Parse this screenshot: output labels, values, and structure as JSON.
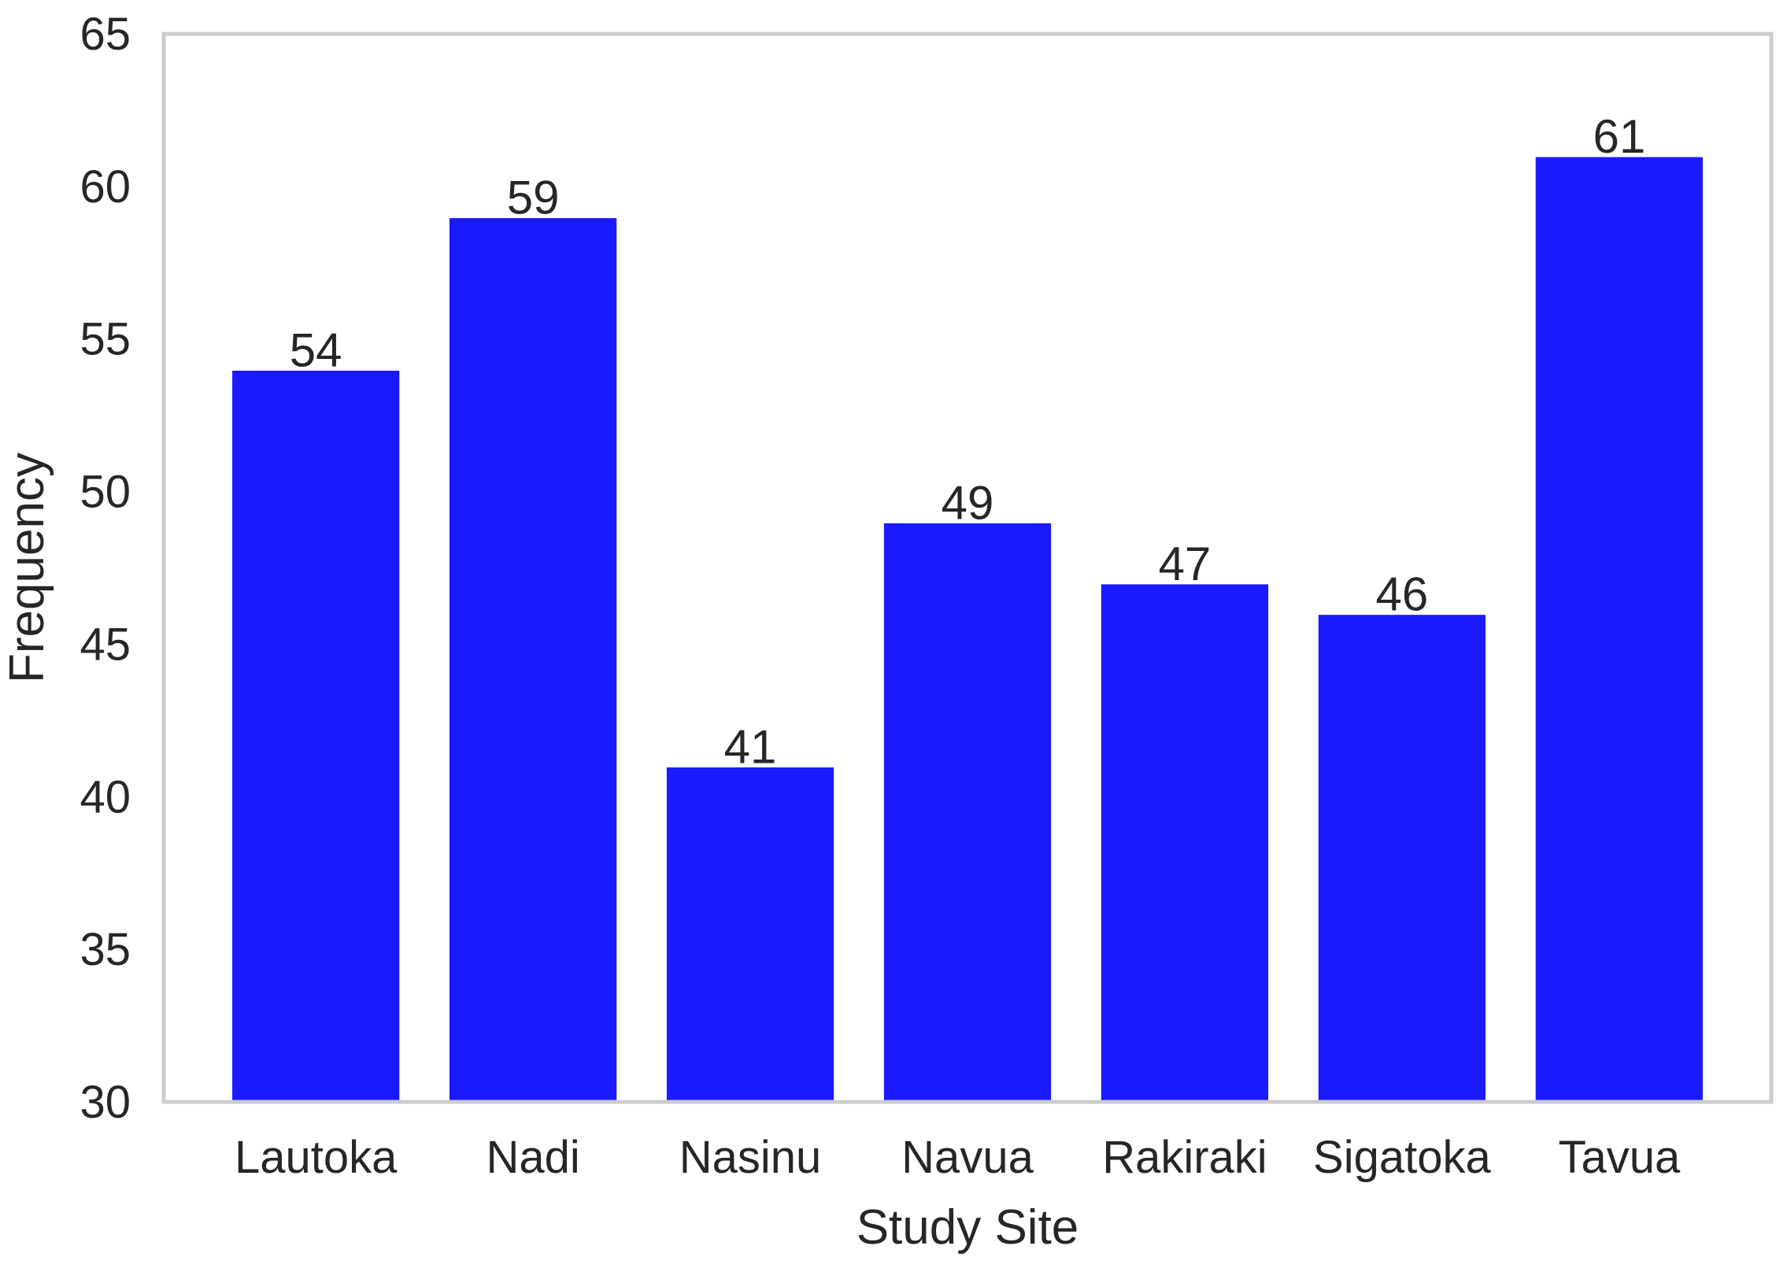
{
  "chart_data": {
    "type": "bar",
    "title": "",
    "xlabel": "Study Site",
    "ylabel": "Frequency",
    "categories": [
      "Lautoka",
      "Nadi",
      "Nasinu",
      "Navua",
      "Rakiraki",
      "Sigatoka",
      "Tavua"
    ],
    "values": [
      54,
      59,
      41,
      49,
      47,
      46,
      61
    ],
    "data_labels": [
      "54",
      "59",
      "41",
      "49",
      "47",
      "46",
      "61"
    ],
    "ylim": [
      30,
      65
    ],
    "yticks": [
      30,
      35,
      40,
      45,
      50,
      55,
      60,
      65
    ],
    "ytick_labels": [
      "30",
      "35",
      "40",
      "45",
      "50",
      "55",
      "60",
      "65"
    ],
    "grid": false,
    "legend": "none",
    "bar_color": "#1a1aff",
    "frame_color": "#cccccc"
  }
}
